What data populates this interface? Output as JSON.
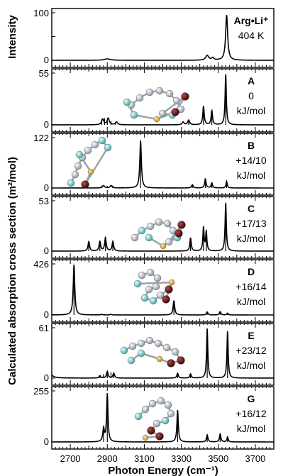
{
  "figure": {
    "ylabel_top": "Intensity",
    "ylabel_main": "Calculated absorption cross section  (m²/mol)",
    "xlabel": "Photon Energy (cm⁻¹)",
    "xticks": [
      "2700",
      "2900",
      "3100",
      "3300",
      "3500",
      "3700"
    ]
  },
  "chart_data": [
    {
      "type": "line",
      "id": "exp",
      "ymax": "100",
      "ymin": "0",
      "ylim": [
        0,
        100
      ],
      "xlim": [
        2600,
        3800
      ],
      "label_bold": "Arg•Li⁺",
      "label_lines": [
        "404 K"
      ],
      "peaks": [
        [
          2900,
          3,
          40
        ],
        [
          3440,
          10,
          20
        ],
        [
          3470,
          5,
          14
        ],
        [
          3545,
          95,
          13
        ]
      ],
      "sticks": []
    },
    {
      "type": "line",
      "id": "A",
      "ymax": "55",
      "ymin": "0",
      "ylim": [
        0,
        55
      ],
      "xlim": [
        2600,
        3800
      ],
      "label_bold": "A",
      "label_lines": [
        "0",
        "kJ/mol"
      ],
      "peaks": [
        [
          2875,
          6,
          14
        ],
        [
          2905,
          7,
          14
        ],
        [
          2950,
          3,
          14
        ],
        [
          3310,
          3,
          12
        ],
        [
          3340,
          5,
          12
        ],
        [
          3420,
          20,
          9
        ],
        [
          3465,
          15,
          9
        ],
        [
          3540,
          54,
          8
        ]
      ],
      "sticks": [
        [
          2870,
          6
        ],
        [
          2885,
          7
        ],
        [
          2900,
          5
        ],
        [
          2920,
          4
        ],
        [
          2945,
          3
        ],
        [
          3340,
          5
        ],
        [
          3420,
          20
        ],
        [
          3465,
          15
        ],
        [
          3540,
          54
        ]
      ]
    },
    {
      "type": "line",
      "id": "B",
      "ymax": "122",
      "ymin": "0",
      "ylim": [
        0,
        122
      ],
      "xlim": [
        2600,
        3800
      ],
      "label_bold": "B",
      "label_lines": [
        "+14/10",
        "kJ/mol"
      ],
      "peaks": [
        [
          2880,
          6,
          12
        ],
        [
          2920,
          6,
          12
        ],
        [
          3080,
          115,
          10
        ],
        [
          3360,
          8,
          10
        ],
        [
          3430,
          22,
          9
        ],
        [
          3465,
          12,
          9
        ],
        [
          3545,
          16,
          8
        ]
      ],
      "sticks": [
        [
          2870,
          6
        ],
        [
          2900,
          5
        ],
        [
          2930,
          6
        ],
        [
          3080,
          115
        ],
        [
          3360,
          8
        ],
        [
          3430,
          22
        ],
        [
          3465,
          12
        ],
        [
          3545,
          16
        ]
      ]
    },
    {
      "type": "line",
      "id": "C",
      "ymax": "53",
      "ymin": "0",
      "ylim": [
        0,
        53
      ],
      "xlim": [
        2600,
        3800
      ],
      "label_bold": "C",
      "label_lines": [
        "+17/13",
        "kJ/mol"
      ],
      "peaks": [
        [
          2800,
          10,
          10
        ],
        [
          2860,
          10,
          10
        ],
        [
          2890,
          14,
          10
        ],
        [
          2930,
          10,
          10
        ],
        [
          3350,
          14,
          9
        ],
        [
          3420,
          25,
          8
        ],
        [
          3435,
          20,
          8
        ],
        [
          3540,
          51,
          8
        ]
      ],
      "sticks": [
        [
          2800,
          10
        ],
        [
          2860,
          10
        ],
        [
          2890,
          14
        ],
        [
          2930,
          10
        ],
        [
          3350,
          14
        ],
        [
          3420,
          25
        ],
        [
          3435,
          20
        ],
        [
          3540,
          51
        ]
      ]
    },
    {
      "type": "line",
      "id": "D",
      "ymax": "426",
      "ymin": "0",
      "ylim": [
        0,
        426
      ],
      "xlim": [
        2600,
        3800
      ],
      "label_bold": "D",
      "label_lines": [
        "+16/14",
        "kJ/mol"
      ],
      "peaks": [
        [
          2720,
          420,
          10
        ],
        [
          2870,
          5,
          10
        ],
        [
          2920,
          5,
          10
        ],
        [
          3260,
          120,
          10
        ],
        [
          3440,
          25,
          9
        ],
        [
          3510,
          28,
          9
        ],
        [
          3550,
          15,
          8
        ]
      ],
      "sticks": [
        [
          2720,
          420
        ],
        [
          2870,
          5
        ],
        [
          2920,
          5
        ],
        [
          3260,
          120
        ],
        [
          3440,
          25
        ],
        [
          3510,
          28
        ],
        [
          3550,
          15
        ]
      ]
    },
    {
      "type": "line",
      "id": "E",
      "ymax": "61",
      "ymin": "0",
      "ylim": [
        0,
        61
      ],
      "xlim": [
        2600,
        3800
      ],
      "label_bold": "E",
      "label_lines": [
        "+23/12",
        "kJ/mol"
      ],
      "peaks": [
        [
          2580,
          14,
          25
        ],
        [
          2860,
          3,
          10
        ],
        [
          2900,
          8,
          10
        ],
        [
          2935,
          6,
          10
        ],
        [
          3280,
          6,
          9
        ],
        [
          3350,
          5,
          9
        ],
        [
          3440,
          60,
          8
        ],
        [
          3550,
          57,
          8
        ]
      ],
      "sticks": [
        [
          2860,
          3
        ],
        [
          2880,
          5
        ],
        [
          2900,
          8
        ],
        [
          2920,
          7
        ],
        [
          2935,
          6
        ],
        [
          3280,
          6
        ],
        [
          3350,
          5
        ],
        [
          3440,
          60
        ],
        [
          3550,
          57
        ]
      ]
    },
    {
      "type": "line",
      "id": "G",
      "ymax": "255",
      "ymin": "0",
      "ylim": [
        0,
        255
      ],
      "xlim": [
        2600,
        3800
      ],
      "label_bold": "G",
      "label_lines": [
        "+16/12",
        "kJ/mol"
      ],
      "peaks": [
        [
          2880,
          65,
          10
        ],
        [
          2900,
          240,
          9
        ],
        [
          3280,
          160,
          9
        ],
        [
          3440,
          35,
          9
        ],
        [
          3510,
          40,
          9
        ],
        [
          3550,
          25,
          8
        ]
      ],
      "sticks": [
        [
          2880,
          65
        ],
        [
          2900,
          240
        ],
        [
          3280,
          160
        ],
        [
          3440,
          35
        ],
        [
          3510,
          40
        ],
        [
          3550,
          25
        ]
      ]
    }
  ]
}
